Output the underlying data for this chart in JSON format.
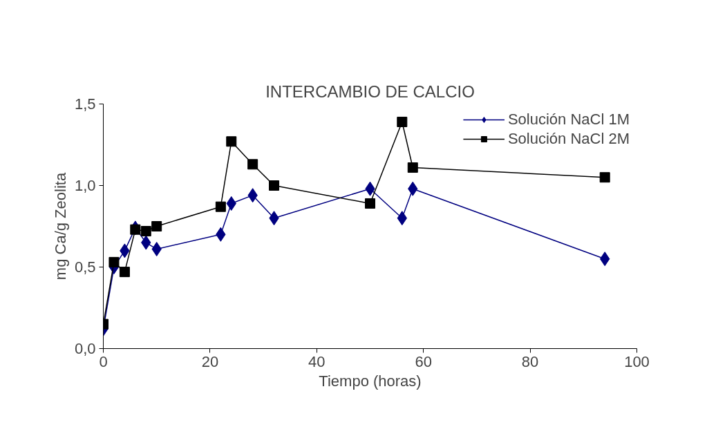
{
  "chart_data": {
    "type": "line",
    "title": "INTERCAMBIO DE CALCIO",
    "xlabel": "Tiempo (horas)",
    "ylabel": "mg Ca/g Zeolita",
    "xlim": [
      0,
      100
    ],
    "xticks": [
      0,
      20,
      40,
      60,
      80,
      100
    ],
    "ylim": [
      0,
      1.5
    ],
    "yticks": [
      {
        "value": 0,
        "label": "0,0"
      },
      {
        "value": 0.5,
        "label": "0,5"
      },
      {
        "value": 1,
        "label": "1,0"
      },
      {
        "value": 1.5,
        "label": "1,5"
      }
    ],
    "grid": false,
    "legend": "top right",
    "line_style": "solid",
    "series": [
      {
        "name": "Solución NaCl 1M",
        "color": "#000080",
        "marker": "diamond",
        "x": [
          0,
          2,
          4,
          6,
          8,
          10,
          22,
          24,
          28,
          32,
          50,
          56,
          58,
          94
        ],
        "values": [
          0.12,
          0.5,
          0.6,
          0.74,
          0.65,
          0.61,
          0.7,
          0.89,
          0.94,
          0.8,
          0.98,
          0.8,
          0.98,
          0.55
        ]
      },
      {
        "name": "Solución NaCl 2M",
        "color": "#000000",
        "marker": "square",
        "x": [
          0,
          2,
          4,
          6,
          8,
          10,
          22,
          24,
          28,
          32,
          50,
          56,
          58,
          94
        ],
        "values": [
          0.15,
          0.53,
          0.47,
          0.73,
          0.72,
          0.75,
          0.87,
          1.27,
          1.13,
          1.0,
          0.89,
          1.39,
          1.11,
          1.05
        ]
      }
    ]
  }
}
